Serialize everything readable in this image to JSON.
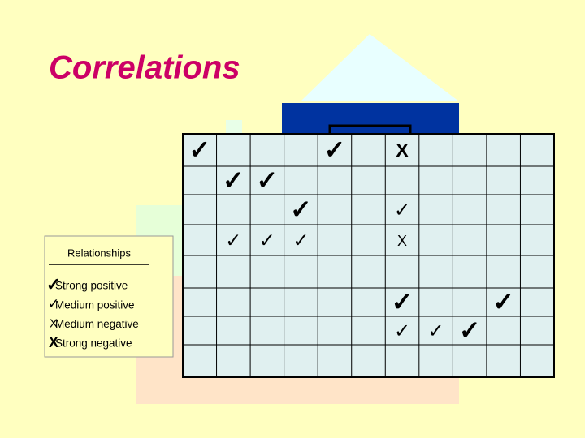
{
  "title": "Correlations",
  "legend": {
    "title": "Relationships",
    "items": [
      {
        "symbol": "✓",
        "size": "large",
        "label": "Strong positive"
      },
      {
        "symbol": "✓",
        "size": "medium",
        "label": "Medium positive"
      },
      {
        "symbol": "X",
        "size": "medium",
        "label": "Medium negative"
      },
      {
        "symbol": "X",
        "size": "large",
        "label": "Strong negative"
      }
    ]
  },
  "matrix": {
    "rows": [
      [
        {
          "symbol": "✓",
          "size": "large"
        },
        null,
        null,
        null,
        {
          "symbol": "✓",
          "size": "large"
        },
        null,
        {
          "symbol": "X",
          "size": "large"
        },
        null,
        null,
        null,
        null
      ],
      [
        null,
        {
          "symbol": "✓",
          "size": "large"
        },
        {
          "symbol": "✓",
          "size": "large"
        },
        null,
        null,
        null,
        null,
        null,
        null,
        null,
        null
      ],
      [
        null,
        null,
        null,
        {
          "symbol": "✓",
          "size": "large"
        },
        null,
        null,
        {
          "symbol": "✓",
          "size": "medium"
        },
        null,
        null,
        null,
        null
      ],
      [
        null,
        {
          "symbol": "✓",
          "size": "medium"
        },
        {
          "symbol": "✓",
          "size": "medium"
        },
        {
          "symbol": "✓",
          "size": "medium"
        },
        null,
        null,
        {
          "symbol": "X",
          "size": "medium"
        },
        null,
        null,
        null,
        null
      ],
      [
        null,
        null,
        null,
        null,
        null,
        null,
        null,
        null,
        null,
        null,
        null
      ],
      [
        null,
        null,
        null,
        null,
        null,
        null,
        {
          "symbol": "✓",
          "size": "large"
        },
        null,
        null,
        {
          "symbol": "✓",
          "size": "large"
        },
        null
      ],
      [
        null,
        null,
        null,
        null,
        null,
        null,
        {
          "symbol": "✓",
          "size": "medium"
        },
        {
          "symbol": "✓",
          "size": "medium"
        },
        {
          "symbol": "✓",
          "size": "large"
        },
        null,
        null
      ],
      [
        null,
        null,
        null,
        null,
        null,
        null,
        null,
        null,
        null,
        null,
        null
      ]
    ]
  }
}
